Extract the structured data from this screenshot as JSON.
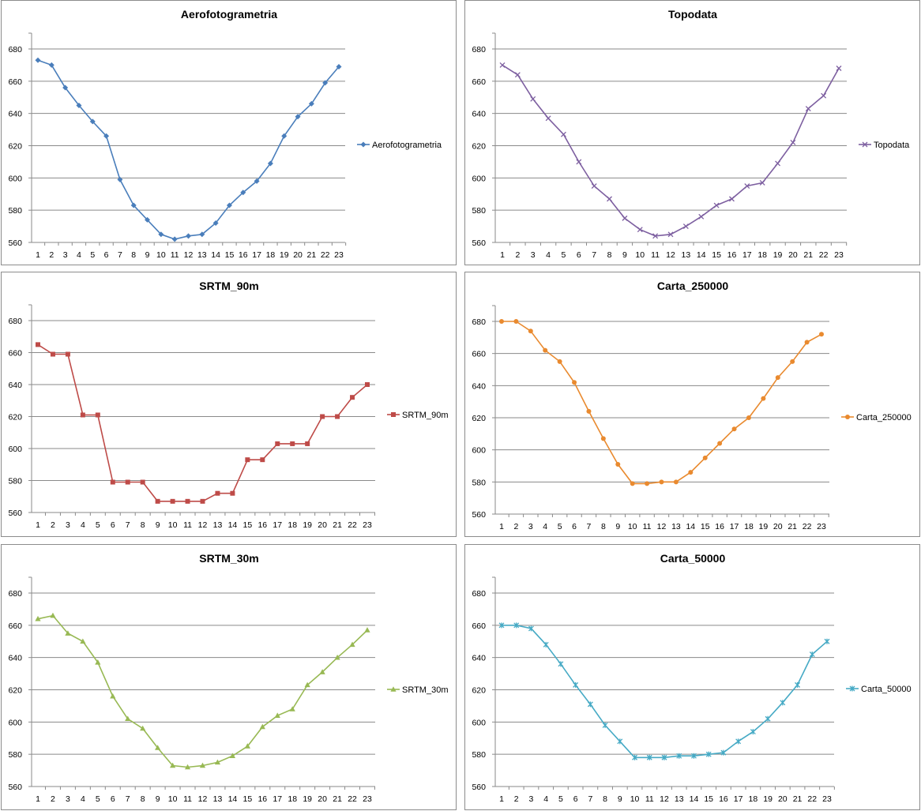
{
  "chart_data": [
    {
      "type": "line",
      "title": "Aerofotogrametria",
      "categories": [
        "1",
        "2",
        "3",
        "4",
        "5",
        "6",
        "7",
        "8",
        "9",
        "10",
        "11",
        "12",
        "13",
        "14",
        "15",
        "16",
        "17",
        "18",
        "19",
        "20",
        "21",
        "22",
        "23"
      ],
      "series": [
        {
          "name": "Aerofotogrametria",
          "values": [
            673,
            670,
            656,
            645,
            635,
            626,
            599,
            583,
            574,
            565,
            562,
            564,
            565,
            572,
            583,
            591,
            598,
            609,
            626,
            638,
            646,
            659,
            669
          ]
        }
      ],
      "ylim": [
        560,
        680
      ],
      "ystep": 20,
      "yticks": [
        "560",
        "580",
        "600",
        "620",
        "640",
        "660",
        "680"
      ],
      "grid": true,
      "legend": "right",
      "color": "#4a7ebb",
      "marker": "diamond"
    },
    {
      "type": "line",
      "title": "Topodata",
      "categories": [
        "1",
        "2",
        "3",
        "4",
        "5",
        "6",
        "7",
        "8",
        "9",
        "10",
        "11",
        "12",
        "13",
        "14",
        "15",
        "16",
        "17",
        "18",
        "19",
        "20",
        "21",
        "22",
        "23"
      ],
      "series": [
        {
          "name": "Topodata",
          "values": [
            670,
            664,
            649,
            637,
            627,
            610,
            595,
            587,
            575,
            568,
            564,
            565,
            570,
            576,
            583,
            587,
            595,
            597,
            609,
            622,
            643,
            651,
            668
          ]
        }
      ],
      "ylim": [
        560,
        680
      ],
      "ystep": 20,
      "yticks": [
        "560",
        "580",
        "600",
        "620",
        "640",
        "660",
        "680"
      ],
      "grid": true,
      "legend": "right",
      "color": "#7d5fa0",
      "marker": "x"
    },
    {
      "type": "line",
      "title": "SRTM_90m",
      "categories": [
        "1",
        "2",
        "3",
        "4",
        "5",
        "6",
        "7",
        "8",
        "9",
        "10",
        "11",
        "12",
        "13",
        "14",
        "15",
        "16",
        "17",
        "18",
        "19",
        "20",
        "21",
        "22",
        "23"
      ],
      "series": [
        {
          "name": "SRTM_90m",
          "values": [
            665,
            659,
            659,
            621,
            621,
            579,
            579,
            579,
            567,
            567,
            567,
            567,
            572,
            572,
            593,
            593,
            603,
            603,
            603,
            620,
            620,
            632,
            640
          ]
        }
      ],
      "ylim": [
        560,
        680
      ],
      "ystep": 20,
      "yticks": [
        "560",
        "580",
        "600",
        "620",
        "640",
        "660",
        "680"
      ],
      "grid": true,
      "legend": "right",
      "color": "#be4b48",
      "marker": "square"
    },
    {
      "type": "line",
      "title": "Carta_250000",
      "categories": [
        "1",
        "2",
        "3",
        "4",
        "5",
        "6",
        "7",
        "8",
        "9",
        "10",
        "11",
        "12",
        "13",
        "14",
        "15",
        "16",
        "17",
        "18",
        "19",
        "20",
        "21",
        "22",
        "23"
      ],
      "series": [
        {
          "name": "Carta_250000",
          "values": [
            680,
            680,
            674,
            662,
            655,
            642,
            624,
            607,
            591,
            579,
            579,
            580,
            580,
            586,
            595,
            604,
            613,
            620,
            632,
            645,
            655,
            667,
            672
          ]
        }
      ],
      "ylim": [
        560,
        680
      ],
      "ystep": 20,
      "yticks": [
        "560",
        "580",
        "600",
        "620",
        "640",
        "660",
        "680"
      ],
      "grid": true,
      "legend": "right",
      "color": "#e98a2f",
      "marker": "circle"
    },
    {
      "type": "line",
      "title": "SRTM_30m",
      "categories": [
        "1",
        "2",
        "3",
        "4",
        "5",
        "6",
        "7",
        "8",
        "9",
        "10",
        "11",
        "12",
        "13",
        "14",
        "15",
        "16",
        "17",
        "18",
        "19",
        "20",
        "21",
        "22",
        "23"
      ],
      "series": [
        {
          "name": "SRTM_30m",
          "values": [
            664,
            666,
            655,
            650,
            637,
            616,
            602,
            596,
            584,
            573,
            572,
            573,
            575,
            579,
            585,
            597,
            604,
            608,
            623,
            631,
            640,
            648,
            657
          ]
        }
      ],
      "ylim": [
        560,
        680
      ],
      "ystep": 20,
      "yticks": [
        "560",
        "580",
        "600",
        "620",
        "640",
        "660",
        "680"
      ],
      "grid": true,
      "legend": "right",
      "color": "#98b954",
      "marker": "triangle"
    },
    {
      "type": "line",
      "title": "Carta_50000",
      "categories": [
        "1",
        "2",
        "3",
        "4",
        "5",
        "6",
        "7",
        "8",
        "9",
        "10",
        "11",
        "12",
        "13",
        "14",
        "15",
        "16",
        "17",
        "18",
        "19",
        "20",
        "21",
        "22",
        "23"
      ],
      "series": [
        {
          "name": "Carta_50000",
          "values": [
            660,
            660,
            658,
            648,
            636,
            623,
            611,
            598,
            588,
            578,
            578,
            578,
            579,
            579,
            580,
            581,
            588,
            594,
            602,
            612,
            623,
            642,
            650
          ]
        }
      ],
      "ylim": [
        560,
        680
      ],
      "ystep": 20,
      "yticks": [
        "560",
        "580",
        "600",
        "620",
        "640",
        "660",
        "680"
      ],
      "grid": true,
      "legend": "right",
      "color": "#46aac5",
      "marker": "star"
    }
  ]
}
